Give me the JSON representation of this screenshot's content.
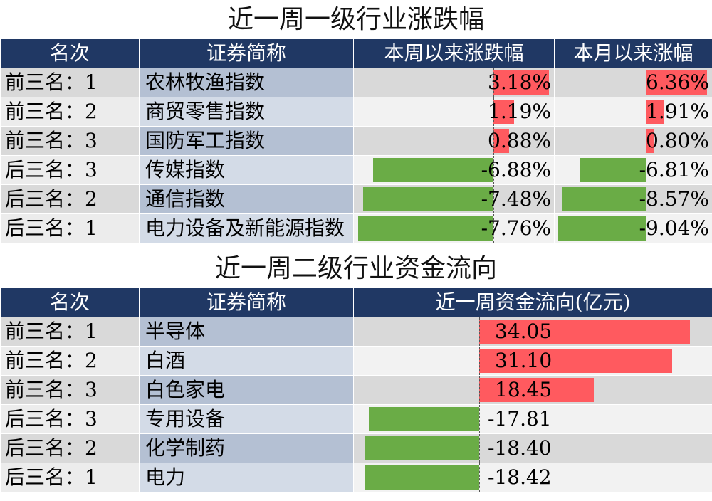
{
  "table1": {
    "title": "近一周一级行业涨跌幅",
    "headers": [
      "名次",
      "证券简称",
      "本周以来涨跌幅",
      "本月以来涨幅"
    ],
    "rows": [
      {
        "rank": "前三名：1",
        "name": "农林牧渔指数",
        "week": "3.18%",
        "week_value": 3.18,
        "month": "6.36%",
        "month_value": 6.36
      },
      {
        "rank": "前三名：2",
        "name": "商贸零售指数",
        "week": "1.19%",
        "week_value": 1.19,
        "month": "1.91%",
        "month_value": 1.91
      },
      {
        "rank": "前三名：3",
        "name": "国防军工指数",
        "week": "0.88%",
        "week_value": 0.88,
        "month": "0.80%",
        "month_value": 0.8
      },
      {
        "rank": "后三名：3",
        "name": "传媒指数",
        "week": "-6.88%",
        "week_value": -6.88,
        "month": "-6.81%",
        "month_value": -6.81
      },
      {
        "rank": "后三名：2",
        "name": "通信指数",
        "week": "-7.48%",
        "week_value": -7.48,
        "month": "-8.57%",
        "month_value": -8.57
      },
      {
        "rank": "后三名：1",
        "name": "电力设备及新能源指数",
        "week": "-7.76%",
        "week_value": -7.76,
        "month": "-9.04%",
        "month_value": -9.04
      }
    ],
    "colors": {
      "positive": "#ff5a5f",
      "negative": "#6aac46",
      "header": "#203864"
    }
  },
  "table2": {
    "title": "近一周二级行业资金流向",
    "headers": [
      "名次",
      "证券简称",
      "近一周资金流向(亿元)"
    ],
    "rows": [
      {
        "rank": "前三名：1",
        "name": "半导体",
        "flow": "34.05",
        "flow_value": 34.05
      },
      {
        "rank": "前三名：2",
        "name": "白酒",
        "flow": "31.10",
        "flow_value": 31.1
      },
      {
        "rank": "前三名：3",
        "name": "白色家电",
        "flow": "18.45",
        "flow_value": 18.45
      },
      {
        "rank": "后三名：3",
        "name": "专用设备",
        "flow": "-17.81",
        "flow_value": -17.81
      },
      {
        "rank": "后三名：2",
        "name": "化学制药",
        "flow": "-18.40",
        "flow_value": -18.4
      },
      {
        "rank": "后三名：1",
        "name": "电力",
        "flow": "-18.42",
        "flow_value": -18.42
      }
    ]
  }
}
